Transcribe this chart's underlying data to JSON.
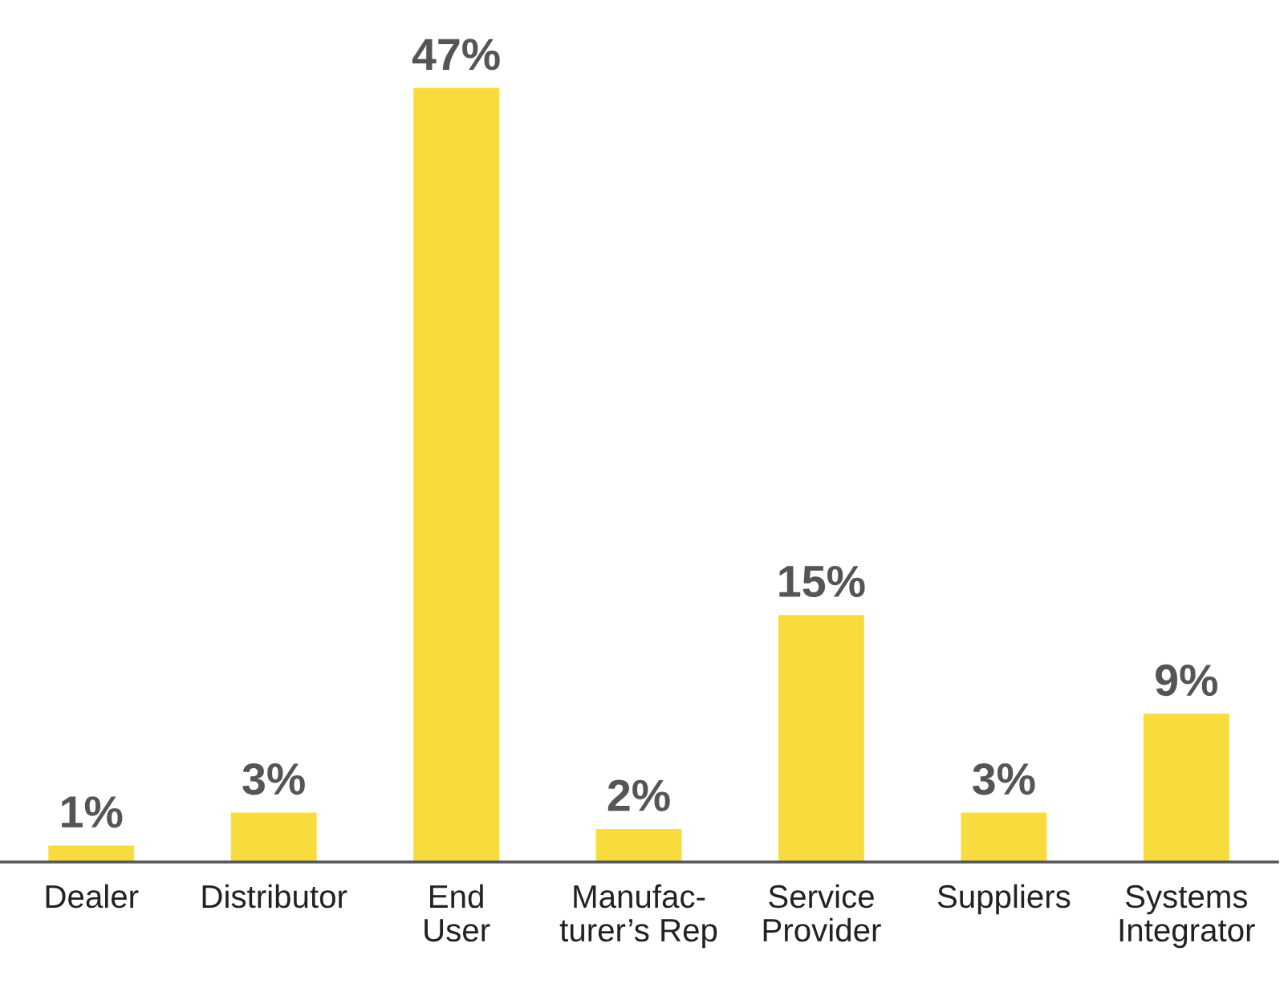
{
  "chart_data": {
    "type": "bar",
    "categories": [
      "Dealer",
      "Distributor",
      "End\nUser",
      "Manufac-\nturer’s Rep",
      "Service\nProvider",
      "Suppliers",
      "Systems\nIntegrator"
    ],
    "values": [
      1,
      3,
      47,
      2,
      15,
      3,
      9
    ],
    "value_labels": [
      "1%",
      "3%",
      "47%",
      "2%",
      "15%",
      "3%",
      "9%"
    ],
    "color": "#f8dc3e",
    "grid": false,
    "legend": false
  }
}
